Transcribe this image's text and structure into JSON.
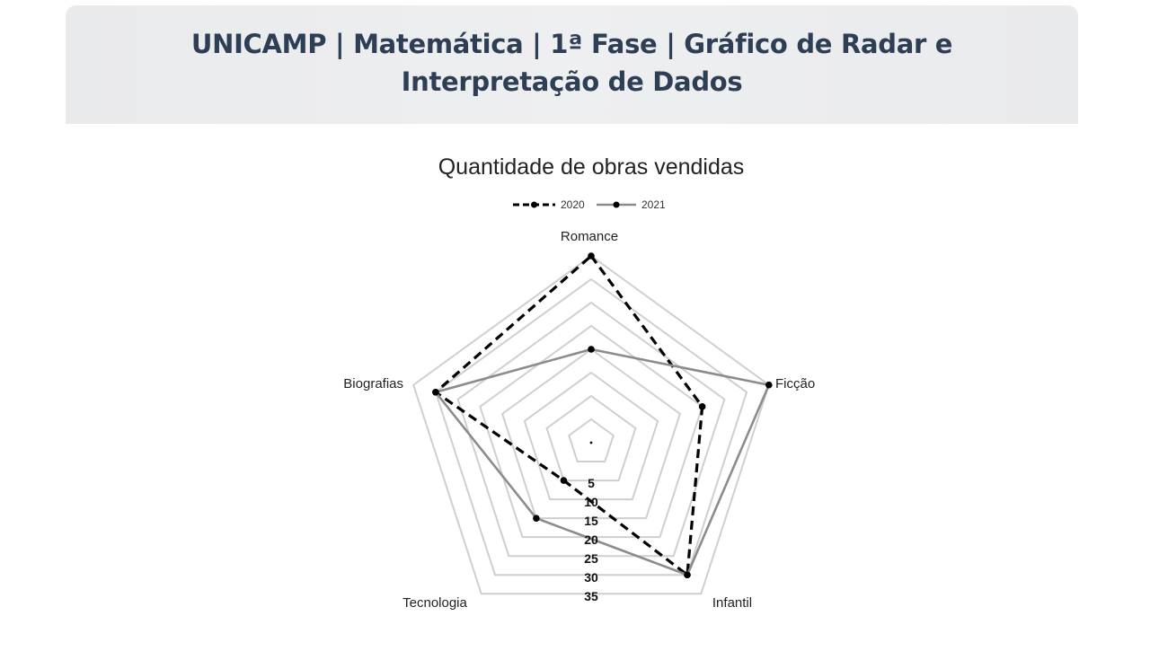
{
  "header": {
    "title_line1": "UNICAMP | Matemática | 1ª Fase | Gráfico de Radar e",
    "title_line2": "Interpretação de Dados"
  },
  "colors": {
    "series_2020": "#000000",
    "series_2021": "#8c8c8c",
    "grid": "#cfcfcf",
    "header_text": "#2e3e55"
  },
  "chart_data": {
    "type": "radar",
    "title": "Quantidade de obras vendidas",
    "categories": [
      "Romance",
      "Ficção",
      "Infantil",
      "Tecnologia",
      "Biografias"
    ],
    "radial_ticks": [
      "5",
      "10",
      "15",
      "20",
      "25",
      "30",
      "35"
    ],
    "rmax": 40,
    "legend_position": "top",
    "grid": true,
    "series": [
      {
        "name": "2020",
        "style": "dashed",
        "values": [
          40,
          25,
          35,
          10,
          35
        ]
      },
      {
        "name": "2021",
        "style": "solid",
        "values": [
          20,
          40,
          35,
          20,
          35
        ]
      }
    ]
  }
}
